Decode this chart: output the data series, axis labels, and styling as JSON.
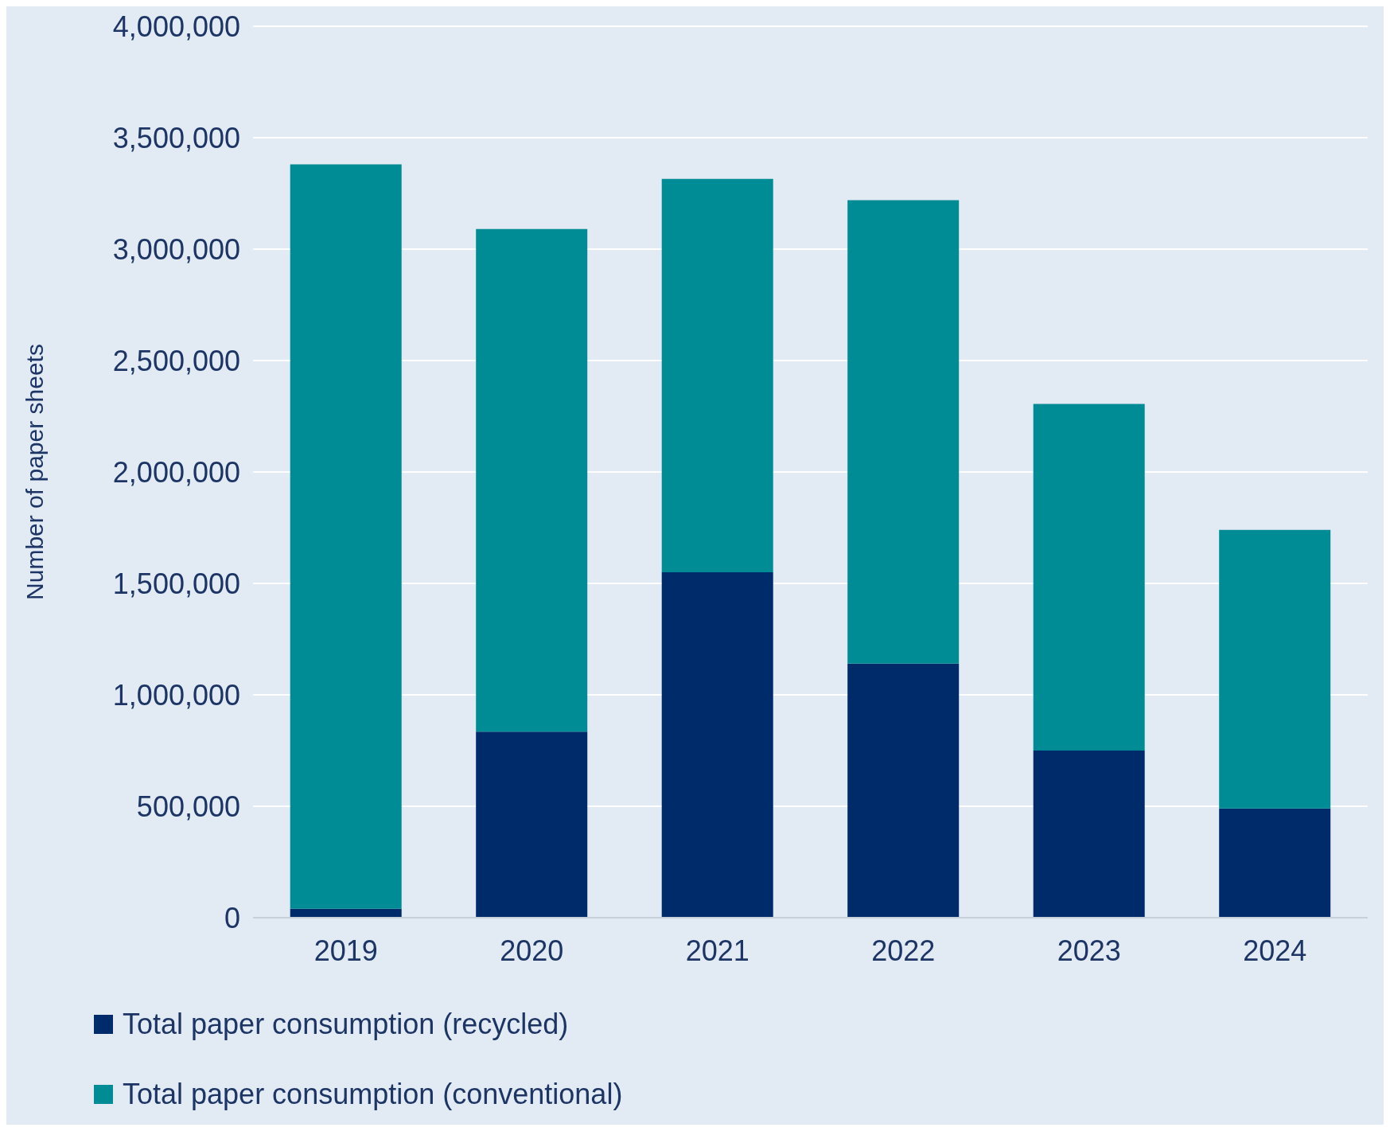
{
  "chart_data": {
    "type": "bar",
    "ylabel": "Number of paper sheets",
    "categories": [
      "2019",
      "2020",
      "2021",
      "2022",
      "2023",
      "2024"
    ],
    "stacked": true,
    "series": [
      {
        "name": "Total paper consumption (recycled)",
        "color": "#002b6b",
        "values": [
          40000,
          835000,
          1550000,
          1140000,
          750000,
          490000
        ]
      },
      {
        "name": "Total paper consumption (conventional)",
        "color": "#008c95",
        "values": [
          3340000,
          2255000,
          1765000,
          2080000,
          1555000,
          1250000
        ]
      }
    ],
    "ylim": [
      0,
      4000000
    ],
    "yticks": [
      0,
      {
        "value": 500000,
        "label": "500,000"
      },
      {
        "value": 1000000,
        "label": "1,000,000"
      },
      {
        "value": 1500000,
        "label": "1,500,000"
      },
      {
        "value": 2000000,
        "label": "2,000,000"
      },
      {
        "value": 2500000,
        "label": "2,500,000"
      },
      {
        "value": 3000000,
        "label": "3,000,000"
      },
      {
        "value": 3500000,
        "label": "3,500,000"
      },
      {
        "value": 4000000,
        "label": "4,000,000"
      }
    ],
    "grid": "y",
    "legend": "bottom"
  }
}
